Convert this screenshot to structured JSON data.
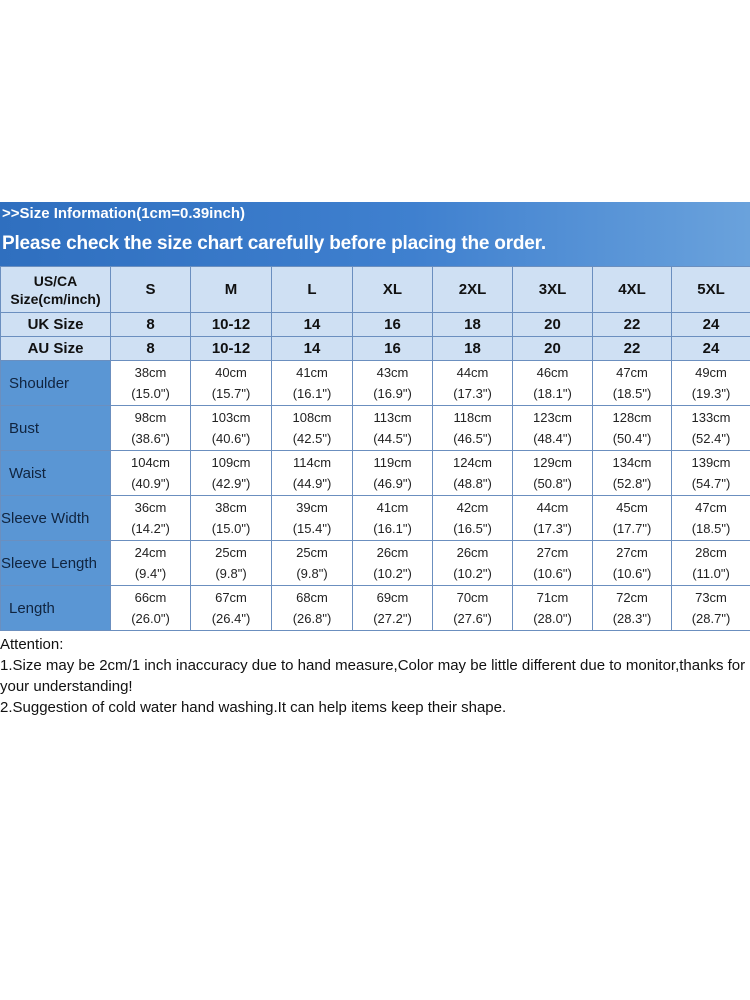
{
  "header": {
    "info": ">>Size Information(1cm=0.39inch)",
    "notice": "Please check the size chart carefully before placing the order."
  },
  "table": {
    "corner": [
      "US/CA",
      "Size(cm/inch)"
    ],
    "sizes": [
      "S",
      "M",
      "L",
      "XL",
      "2XL",
      "3XL",
      "4XL",
      "5XL"
    ],
    "uk_label": "UK Size",
    "uk": [
      "8",
      "10-12",
      "14",
      "16",
      "18",
      "20",
      "22",
      "24"
    ],
    "au_label": "AU Size",
    "au": [
      "8",
      "10-12",
      "14",
      "16",
      "18",
      "20",
      "22",
      "24"
    ],
    "rows": [
      {
        "label": "Shoulder",
        "cm": [
          "38cm",
          "40cm",
          "41cm",
          "43cm",
          "44cm",
          "46cm",
          "47cm",
          "49cm"
        ],
        "inch": [
          "(15.0\")",
          "(15.7\")",
          "(16.1\")",
          "(16.9\")",
          "(17.3\")",
          "(18.1\")",
          "(18.5\")",
          "(19.3\")"
        ]
      },
      {
        "label": "Bust",
        "cm": [
          "98cm",
          "103cm",
          "108cm",
          "113cm",
          "118cm",
          "123cm",
          "128cm",
          "133cm"
        ],
        "inch": [
          "(38.6\")",
          "(40.6\")",
          "(42.5\")",
          "(44.5\")",
          "(46.5\")",
          "(48.4\")",
          "(50.4\")",
          "(52.4\")"
        ]
      },
      {
        "label": "Waist",
        "cm": [
          "104cm",
          "109cm",
          "114cm",
          "119cm",
          "124cm",
          "129cm",
          "134cm",
          "139cm"
        ],
        "inch": [
          "(40.9\")",
          "(42.9\")",
          "(44.9\")",
          "(46.9\")",
          "(48.8\")",
          "(50.8\")",
          "(52.8\")",
          "(54.7\")"
        ]
      },
      {
        "label": "Sleeve Width",
        "cm": [
          "36cm",
          "38cm",
          "39cm",
          "41cm",
          "42cm",
          "44cm",
          "45cm",
          "47cm"
        ],
        "inch": [
          "(14.2\")",
          "(15.0\")",
          "(15.4\")",
          "(16.1\")",
          "(16.5\")",
          "(17.3\")",
          "(17.7\")",
          "(18.5\")"
        ]
      },
      {
        "label": "Sleeve Length",
        "cm": [
          "24cm",
          "25cm",
          "25cm",
          "26cm",
          "26cm",
          "27cm",
          "27cm",
          "28cm"
        ],
        "inch": [
          "(9.4\")",
          "(9.8\")",
          "(9.8\")",
          "(10.2\")",
          "(10.2\")",
          "(10.6\")",
          "(10.6\")",
          "(11.0\")"
        ]
      },
      {
        "label": "Length",
        "cm": [
          "66cm",
          "67cm",
          "68cm",
          "69cm",
          "70cm",
          "71cm",
          "72cm",
          "73cm"
        ],
        "inch": [
          "(26.0\")",
          "(26.4\")",
          "(26.8\")",
          "(27.2\")",
          "(27.6\")",
          "(28.0\")",
          "(28.3\")",
          "(28.7\")"
        ]
      }
    ]
  },
  "attention": {
    "title": "Attention:",
    "note1": "1.Size may be 2cm/1 inch inaccuracy due to hand measure,Color may be little different due to monitor,thanks for your understanding!",
    "note2": "2.Suggestion of cold water hand washing.It can help items keep their shape."
  }
}
